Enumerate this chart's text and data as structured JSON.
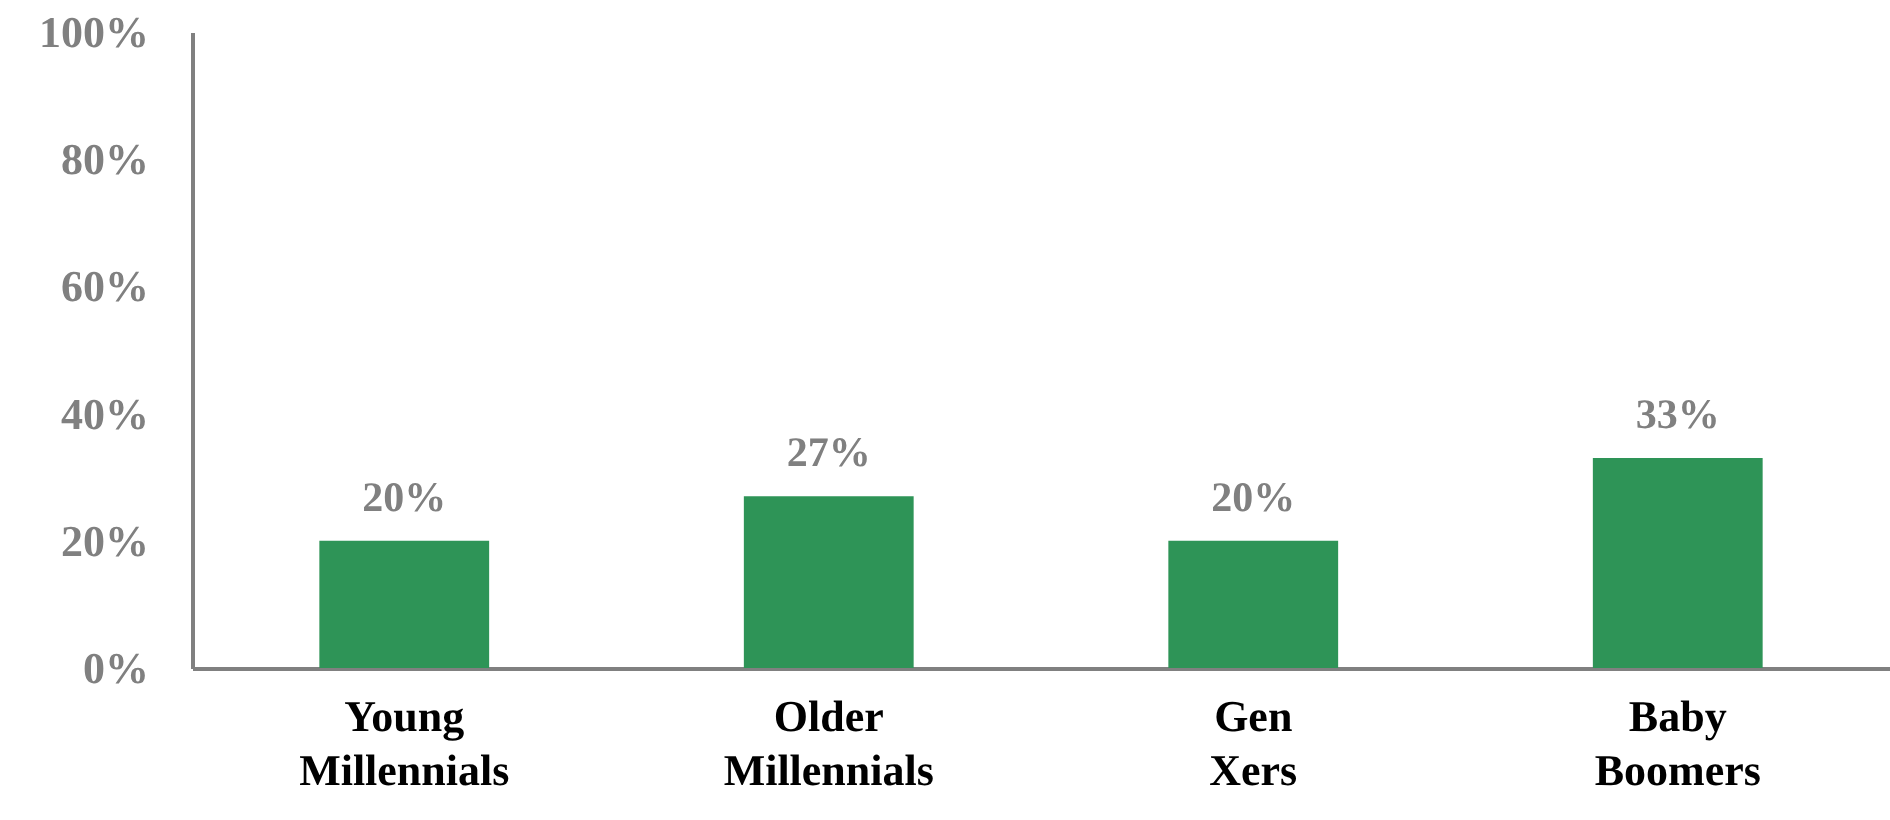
{
  "chart_data": {
    "type": "bar",
    "categories": [
      "Young Millennials",
      "Older Millennials",
      "Gen Xers",
      "Baby Boomers"
    ],
    "values": [
      20,
      27,
      20,
      33
    ],
    "color": "#2e9457",
    "value_labels": [
      "20%",
      "27%",
      "20%",
      "33%"
    ],
    "ylim": [
      0,
      100
    ],
    "yticks": [
      {
        "value": 0,
        "label": "0%"
      },
      {
        "value": 20,
        "label": "20%"
      },
      {
        "value": 40,
        "label": "40%"
      },
      {
        "value": 60,
        "label": "60%"
      },
      {
        "value": 80,
        "label": "80%"
      },
      {
        "value": 100,
        "label": "100%"
      }
    ]
  }
}
